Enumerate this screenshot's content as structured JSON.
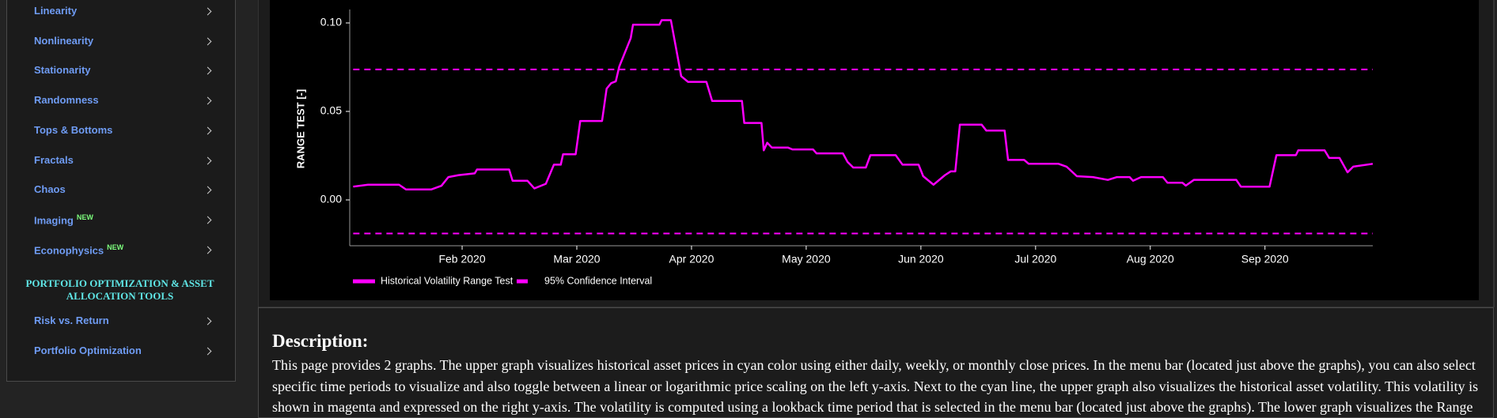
{
  "sidebar": {
    "menu": [
      {
        "label": "Linearity"
      },
      {
        "label": "Nonlinearity"
      },
      {
        "label": "Stationarity"
      },
      {
        "label": "Randomness"
      },
      {
        "label": "Tops & Bottoms"
      },
      {
        "label": "Fractals"
      },
      {
        "label": "Chaos"
      },
      {
        "label": "Imaging",
        "badge": "NEW"
      },
      {
        "label": "Econophysics",
        "badge": "NEW"
      }
    ],
    "section_title": "PORTFOLIO OPTIMIZATION & ASSET ALLOCATION TOOLS",
    "section_menu": [
      {
        "label": "Risk vs. Return"
      },
      {
        "label": "Portfolio Optimization"
      }
    ]
  },
  "chart_data": {
    "type": "line",
    "y_label": "RANGE TEST [-]",
    "xlim": [
      1.02,
      9.94
    ],
    "xticks": [
      {
        "value": 2,
        "label": "Feb 2020"
      },
      {
        "value": 3,
        "label": "Mar 2020"
      },
      {
        "value": 4,
        "label": "Apr 2020"
      },
      {
        "value": 5,
        "label": "May 2020"
      },
      {
        "value": 6,
        "label": "Jun 2020"
      },
      {
        "value": 7,
        "label": "Jul 2020"
      },
      {
        "value": 8,
        "label": "Aug 2020"
      },
      {
        "value": 9,
        "label": "Sep 2020"
      }
    ],
    "ylim": [
      -0.0259,
      0.1076
    ],
    "yticks": [
      {
        "value": 0,
        "label": "0.00"
      },
      {
        "value": 0.05,
        "label": "0.05"
      },
      {
        "value": 0.1,
        "label": "0.10"
      }
    ],
    "series": [
      {
        "name": "Historical Volatility Range Test",
        "color": "#ff00ff",
        "x": [
          1.05,
          1.18,
          1.45,
          1.51,
          1.73,
          1.82,
          1.88,
          1.97,
          2.11,
          2.13,
          2.41,
          2.44,
          2.57,
          2.63,
          2.73,
          2.8,
          2.86,
          2.88,
          2.99,
          3.03,
          3.22,
          3.26,
          3.3,
          3.34,
          3.37,
          3.47,
          3.49,
          3.72,
          3.74,
          3.82,
          3.88,
          3.91,
          3.97,
          4.13,
          4.18,
          4.44,
          4.46,
          4.61,
          4.63,
          4.66,
          4.7,
          4.84,
          4.88,
          5.06,
          5.09,
          5.32,
          5.36,
          5.41,
          5.52,
          5.56,
          5.78,
          5.84,
          5.98,
          6.02,
          6.11,
          6.21,
          6.26,
          6.3,
          6.34,
          6.53,
          6.57,
          6.73,
          6.76,
          6.9,
          6.94,
          7.2,
          7.27,
          7.36,
          7.5,
          7.63,
          7.71,
          7.82,
          7.85,
          7.92,
          8.11,
          8.15,
          8.28,
          8.31,
          8.38,
          8.75,
          8.79,
          9.04,
          9.1,
          9.27,
          9.29,
          9.52,
          9.56,
          9.65,
          9.72,
          9.77,
          9.94
        ],
        "values": [
          0.0075,
          0.0086,
          0.0086,
          0.0059,
          0.0059,
          0.008,
          0.0129,
          0.014,
          0.015,
          0.0172,
          0.0172,
          0.0108,
          0.0108,
          0.0065,
          0.0091,
          0.0199,
          0.0199,
          0.0258,
          0.0258,
          0.0446,
          0.0446,
          0.0629,
          0.066,
          0.067,
          0.0753,
          0.0914,
          0.099,
          0.099,
          0.1016,
          0.1016,
          0.0806,
          0.0699,
          0.0667,
          0.0667,
          0.0559,
          0.0559,
          0.0435,
          0.0435,
          0.028,
          0.0323,
          0.0296,
          0.0296,
          0.0285,
          0.0285,
          0.0263,
          0.0263,
          0.0215,
          0.0183,
          0.0183,
          0.0253,
          0.0253,
          0.0199,
          0.0199,
          0.0134,
          0.0086,
          0.014,
          0.0161,
          0.0161,
          0.0425,
          0.0425,
          0.0392,
          0.0392,
          0.0226,
          0.0226,
          0.0204,
          0.0204,
          0.0188,
          0.0134,
          0.0129,
          0.0113,
          0.0129,
          0.0129,
          0.0108,
          0.0129,
          0.0129,
          0.0097,
          0.0097,
          0.0081,
          0.0113,
          0.0113,
          0.0075,
          0.0075,
          0.0253,
          0.0253,
          0.028,
          0.028,
          0.0237,
          0.0237,
          0.0156,
          0.0188,
          0.0204
        ]
      }
    ],
    "confidence_interval": {
      "name": "95% Confidence Interval",
      "color": "#ff00ff",
      "upper": 0.0737,
      "lower": -0.019
    }
  },
  "description": {
    "title": "Description:",
    "text": "This page provides 2 graphs. The upper graph visualizes historical asset prices in cyan color using either daily, weekly, or monthly close prices. In the menu bar (located just above the graphs), you can also select specific time periods to visualize and also toggle between a linear or logarithmic price scaling on the left y-axis. Next to the cyan line, the upper graph also visualizes the historical asset volatility. This volatility is shown in magenta and expressed on the right y-axis. The volatility is computed using a lookback time period that is selected in the menu bar (located just above the graphs). The lower graph visualizes the Range"
  }
}
